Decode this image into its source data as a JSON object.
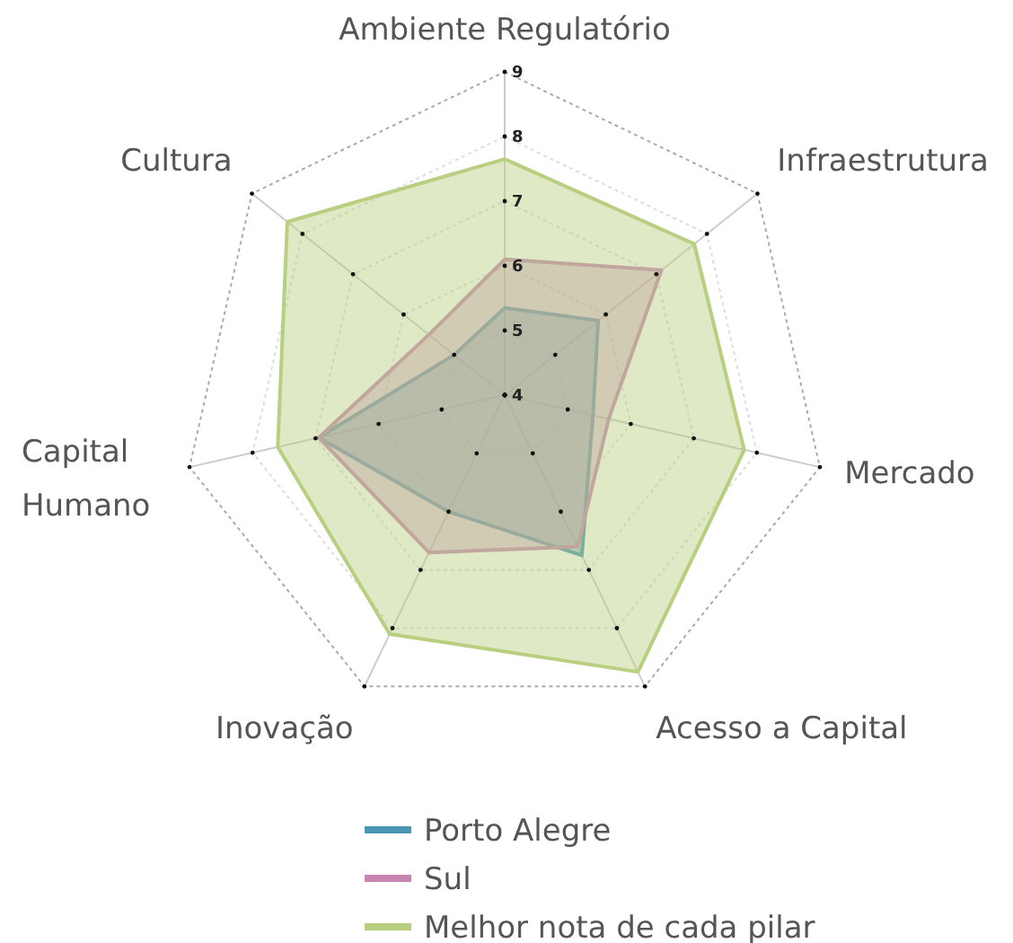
{
  "chart_data": {
    "type": "radar",
    "categories": [
      "Ambiente Regulatório",
      "Infraestrutura",
      "Mercado",
      "Acesso a Capital",
      "Inovação",
      "Capital Humano",
      "Cultura"
    ],
    "ylim": [
      4,
      9
    ],
    "yticks": [
      4,
      5,
      6,
      7,
      8,
      9
    ],
    "legend": "bottom",
    "grid": true,
    "series": [
      {
        "name": "Porto Alegre",
        "color": "#4a97b5",
        "values": [
          5.35,
          5.85,
          5.4,
          6.75,
          6.0,
          6.95,
          5.0
        ]
      },
      {
        "name": "Sul",
        "color": "#c785b3",
        "values": [
          6.1,
          7.1,
          5.65,
          6.6,
          6.7,
          6.95,
          5.5
        ]
      },
      {
        "name": "Melhor nota de cada pilar",
        "color": "#b8cf80",
        "values": [
          7.65,
          7.75,
          7.8,
          8.75,
          8.1,
          7.6,
          8.3
        ]
      }
    ]
  }
}
